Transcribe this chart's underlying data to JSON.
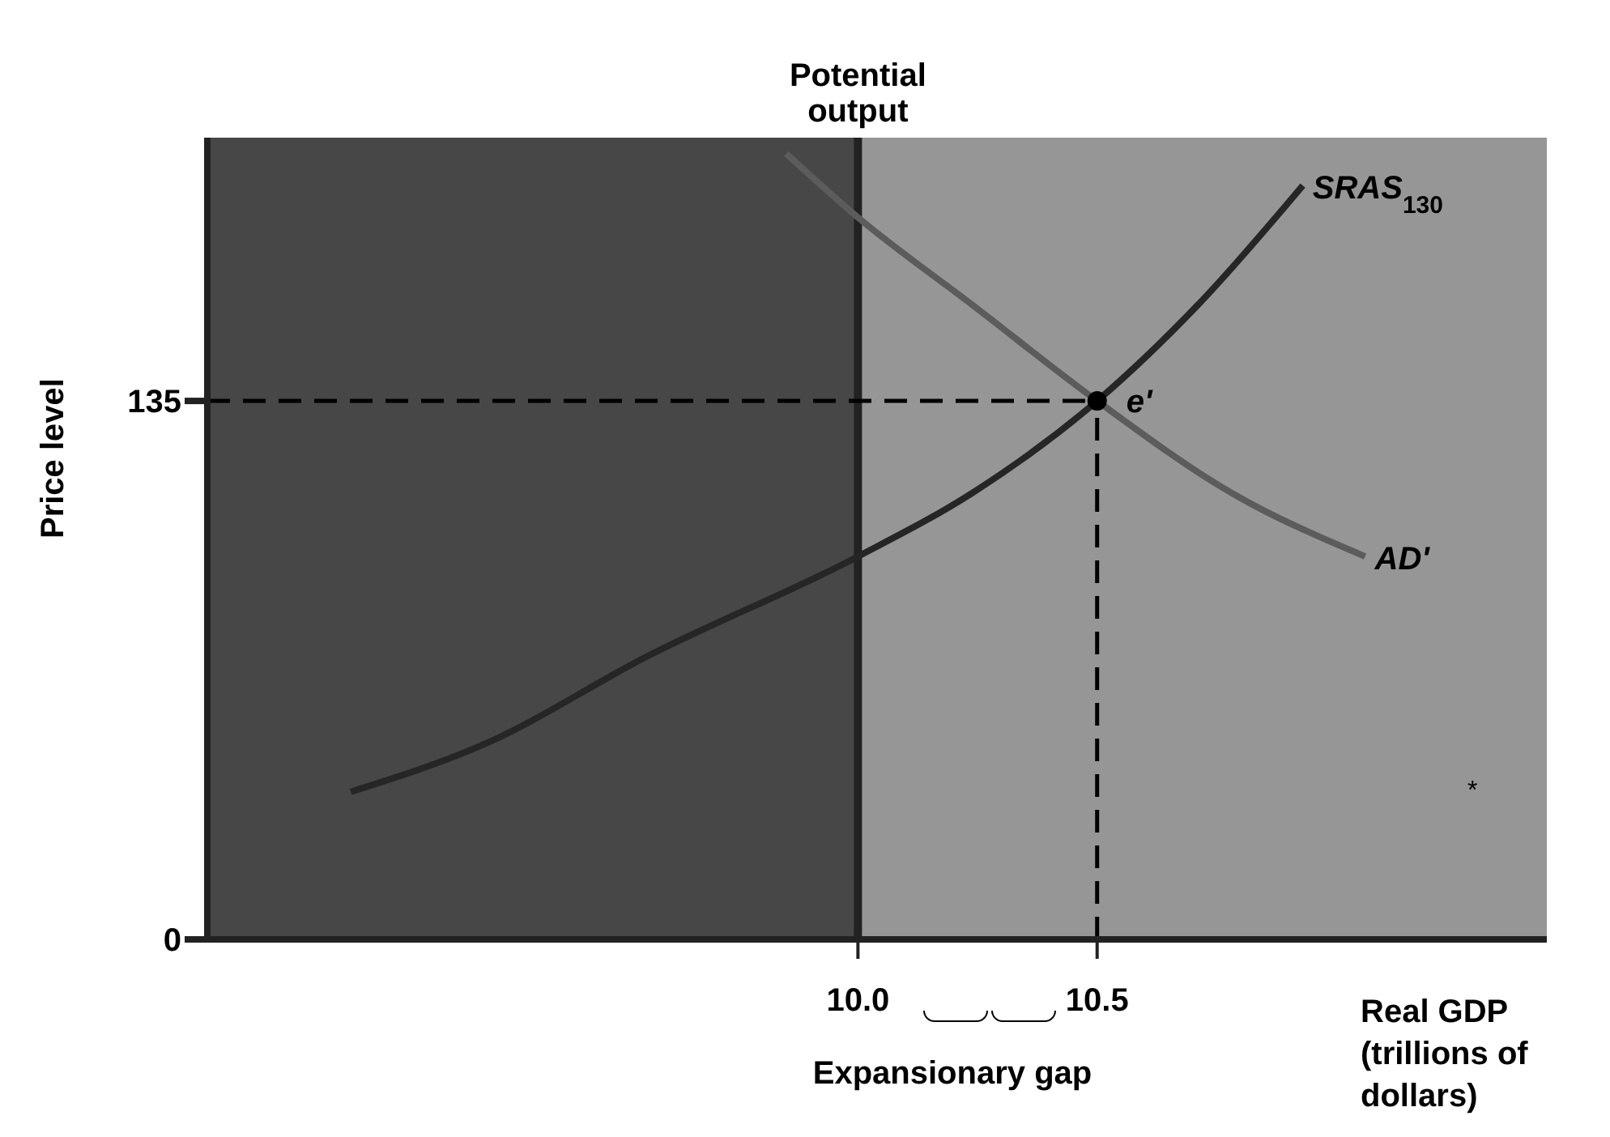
{
  "chart_data": {
    "type": "line",
    "xlabel": "Real GDP (trillions of dollars)",
    "ylabel": "Price level",
    "xlim": [
      8.64,
      11.44
    ],
    "xticks": [
      {
        "value": 10,
        "label": "10.0"
      },
      10.5
    ],
    "ylim": [
      0,
      201
    ],
    "yticks": [
      0,
      135
    ],
    "series": [
      {
        "name": "SRAS$_{130}$",
        "color": "#262626",
        "x": [
          8.94,
          9.22,
          9.56,
          10.0,
          10.24,
          10.5,
          10.71,
          10.93
        ],
        "values": [
          37,
          49,
          71,
          96,
          112,
          135,
          159,
          189
        ]
      },
      {
        "name": "AD'",
        "color": "#5c5c5c",
        "x": [
          9.85,
          10.0,
          10.24,
          10.5,
          10.78,
          11.06
        ],
        "values": [
          197,
          181,
          159,
          135,
          112,
          96
        ]
      }
    ],
    "bands": [
      {
        "axis": "x",
        "from": 8.64,
        "to": 10,
        "color": "#474747"
      },
      {
        "axis": "x",
        "from": 10,
        "to": 11.44,
        "color": "#969696"
      }
    ],
    "ref_lines": [
      {
        "axis": "x",
        "value": 10,
        "label": "Potential output",
        "color": "#222222",
        "line_style": "solid"
      },
      {
        "axis": "x",
        "value": 10.5,
        "color": "#000000",
        "line_style": "dashed"
      },
      {
        "axis": "y",
        "value": 135,
        "color": "#000000",
        "line_style": "dashed"
      }
    ],
    "annotations": [
      {
        "text": "e'",
        "x": 10.5,
        "y": 135
      },
      "Expansionary gap",
      "*"
    ],
    "grid": false
  }
}
